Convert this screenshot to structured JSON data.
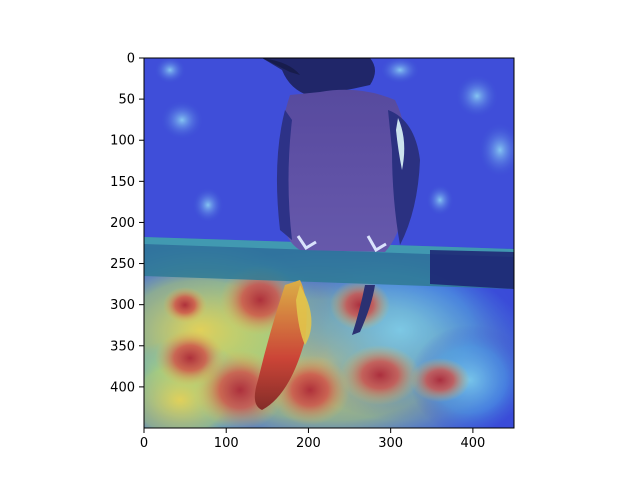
{
  "figure": {
    "type": "heatmap-overlay-image",
    "image_subject": "bird-perched-on-branch",
    "colormap": "jet",
    "colors": {
      "background": "#3a4bd8",
      "hot": "#d23a2a",
      "warm": "#f2d23c",
      "cool": "#58c6e0",
      "frame": "#000000"
    }
  },
  "chart_data": {
    "type": "heatmap",
    "title": "",
    "xlabel": "",
    "ylabel": "",
    "xlim": [
      0,
      450
    ],
    "ylim": [
      450,
      0
    ],
    "x_ticks": [
      0,
      100,
      200,
      300,
      400
    ],
    "y_ticks": [
      0,
      50,
      100,
      150,
      200,
      250,
      300,
      350,
      400
    ],
    "x_tick_labels": [
      "0",
      "100",
      "200",
      "300",
      "400"
    ],
    "y_tick_labels": [
      "0",
      "50",
      "100",
      "150",
      "200",
      "250",
      "300",
      "350",
      "400"
    ],
    "grid": false
  }
}
